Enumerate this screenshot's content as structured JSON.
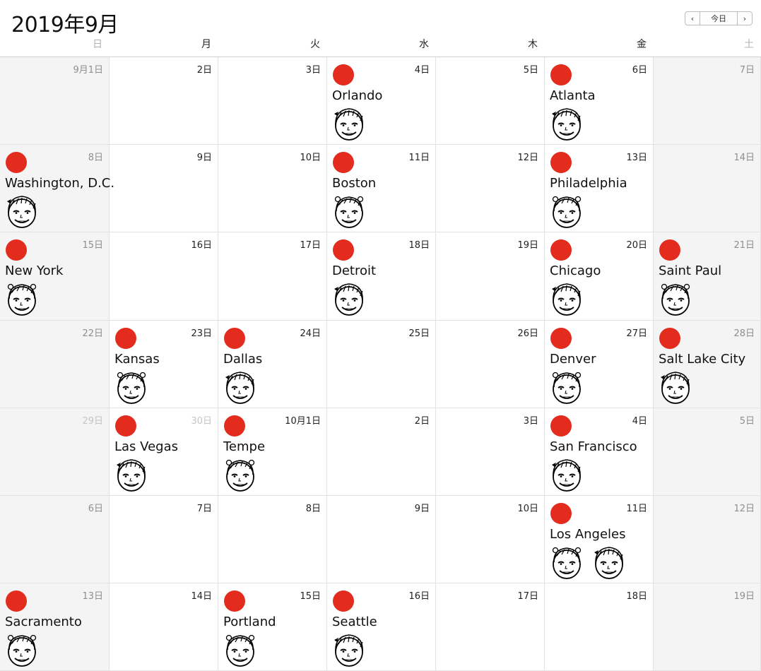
{
  "header": {
    "title": "2019年9月",
    "nav": {
      "prev_icon": "chevron-left-icon",
      "prev_glyph": "‹",
      "today_label": "今日",
      "next_icon": "chevron-right-icon",
      "next_glyph": "›"
    }
  },
  "weekdays": [
    "日",
    "月",
    "火",
    "水",
    "木",
    "金",
    "土"
  ],
  "colors": {
    "event_dot": "#e32b1e",
    "weekend_bg": "#f4f4f4",
    "grid_line": "#e2e2e2"
  },
  "weeks": [
    [
      {
        "date": "9月1日",
        "weekend": true
      },
      {
        "date": "2日"
      },
      {
        "date": "3日"
      },
      {
        "date": "4日",
        "city": "Orlando",
        "faces": 1
      },
      {
        "date": "5日"
      },
      {
        "date": "6日",
        "city": "Atlanta",
        "faces": 1
      },
      {
        "date": "7日",
        "weekend": true
      }
    ],
    [
      {
        "date": "8日",
        "weekend": true,
        "city": "Washington, D.C.",
        "faces": 1
      },
      {
        "date": "9日"
      },
      {
        "date": "10日"
      },
      {
        "date": "11日",
        "city": "Boston",
        "faces": 1
      },
      {
        "date": "12日"
      },
      {
        "date": "13日",
        "city": "Philadelphia",
        "faces": 1
      },
      {
        "date": "14日",
        "weekend": true
      }
    ],
    [
      {
        "date": "15日",
        "weekend": true,
        "city": "New York",
        "faces": 1
      },
      {
        "date": "16日"
      },
      {
        "date": "17日"
      },
      {
        "date": "18日",
        "city": "Detroit",
        "faces": 1
      },
      {
        "date": "19日"
      },
      {
        "date": "20日",
        "city": "Chicago",
        "faces": 1
      },
      {
        "date": "21日",
        "weekend": true,
        "city": "Saint Paul",
        "faces": 1
      }
    ],
    [
      {
        "date": "22日",
        "weekend": true
      },
      {
        "date": "23日",
        "city": "Kansas",
        "faces": 1
      },
      {
        "date": "24日",
        "city": "Dallas",
        "faces": 1
      },
      {
        "date": "25日"
      },
      {
        "date": "26日"
      },
      {
        "date": "27日",
        "city": "Denver",
        "faces": 1
      },
      {
        "date": "28日",
        "weekend": true,
        "city": "Salt Lake City",
        "faces": 1
      }
    ],
    [
      {
        "date": "29日",
        "weekend": true,
        "other_month": true
      },
      {
        "date": "30日",
        "other_month": true,
        "city": "Las Vegas",
        "faces": 1
      },
      {
        "date": "10月1日",
        "city": "Tempe",
        "faces": 1
      },
      {
        "date": "2日"
      },
      {
        "date": "3日"
      },
      {
        "date": "4日",
        "city": "San Francisco",
        "faces": 1
      },
      {
        "date": "5日",
        "weekend": true
      }
    ],
    [
      {
        "date": "6日",
        "weekend": true
      },
      {
        "date": "7日"
      },
      {
        "date": "8日"
      },
      {
        "date": "9日"
      },
      {
        "date": "10日"
      },
      {
        "date": "11日",
        "city": "Los Angeles",
        "faces": 2
      },
      {
        "date": "12日",
        "weekend": true
      }
    ],
    [
      {
        "date": "13日",
        "weekend": true,
        "city": "Sacramento",
        "faces": 1
      },
      {
        "date": "14日"
      },
      {
        "date": "15日",
        "city": "Portland",
        "faces": 1
      },
      {
        "date": "16日",
        "city": "Seattle",
        "faces": 1
      },
      {
        "date": "17日"
      },
      {
        "date": "18日"
      },
      {
        "date": "19日",
        "weekend": true
      }
    ]
  ]
}
